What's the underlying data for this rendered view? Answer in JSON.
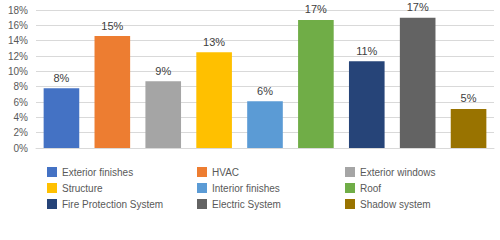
{
  "chart_data": {
    "type": "bar",
    "categories": [
      "Exterior finishes",
      "HVAC",
      "Exterior windows",
      "Structure",
      "Interior finishes",
      "Roof",
      "Fire Protection System",
      "Electric System",
      "Shadow system"
    ],
    "values": [
      7.8,
      14.6,
      8.7,
      12.5,
      6.1,
      16.7,
      11.3,
      17.0,
      5.1
    ],
    "value_labels": [
      "8%",
      "15%",
      "9%",
      "13%",
      "6%",
      "17%",
      "11%",
      "17%",
      "5%"
    ],
    "colors": [
      "#4472c4",
      "#ed7d31",
      "#a5a5a5",
      "#ffc000",
      "#5b9bd5",
      "#70ad47",
      "#264478",
      "#636363",
      "#997300"
    ],
    "ylim": [
      0,
      18
    ],
    "yticks": [
      {
        "value": 0,
        "label": "0%"
      },
      {
        "value": 2,
        "label": "2%"
      },
      {
        "value": 4,
        "label": "4%"
      },
      {
        "value": 6,
        "label": "6%"
      },
      {
        "value": 8,
        "label": "8%"
      },
      {
        "value": 10,
        "label": "10%"
      },
      {
        "value": 12,
        "label": "12%"
      },
      {
        "value": 14,
        "label": "14%"
      },
      {
        "value": 16,
        "label": "16%"
      },
      {
        "value": 18,
        "label": "18%"
      }
    ],
    "grid": true,
    "data_labels": true,
    "legend": "bottom",
    "tick_labels": "y"
  }
}
